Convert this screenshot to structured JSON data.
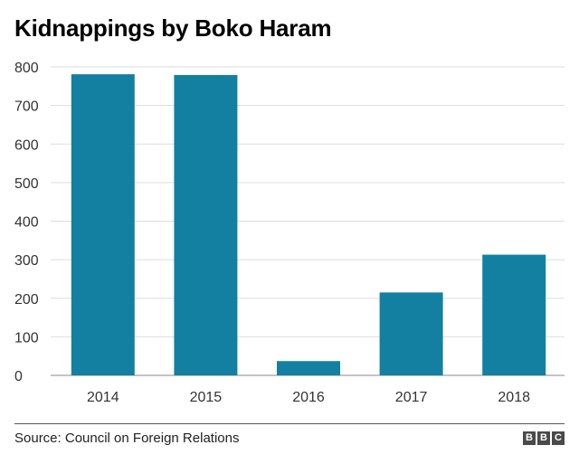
{
  "chart_data": {
    "type": "bar",
    "title": "Kidnappings by Boko Haram",
    "categories": [
      "2014",
      "2015",
      "2016",
      "2017",
      "2018"
    ],
    "values": [
      781,
      779,
      37,
      215,
      313
    ],
    "xlabel": "",
    "ylabel": "",
    "ylim": [
      0,
      800
    ],
    "yticks": [
      0,
      100,
      200,
      300,
      400,
      500,
      600,
      700,
      800
    ],
    "grid": "horizontal",
    "legend": "none",
    "bar_color": "#1380a1"
  },
  "source": "Source: Council on Foreign Relations",
  "logo": [
    "B",
    "B",
    "C"
  ]
}
